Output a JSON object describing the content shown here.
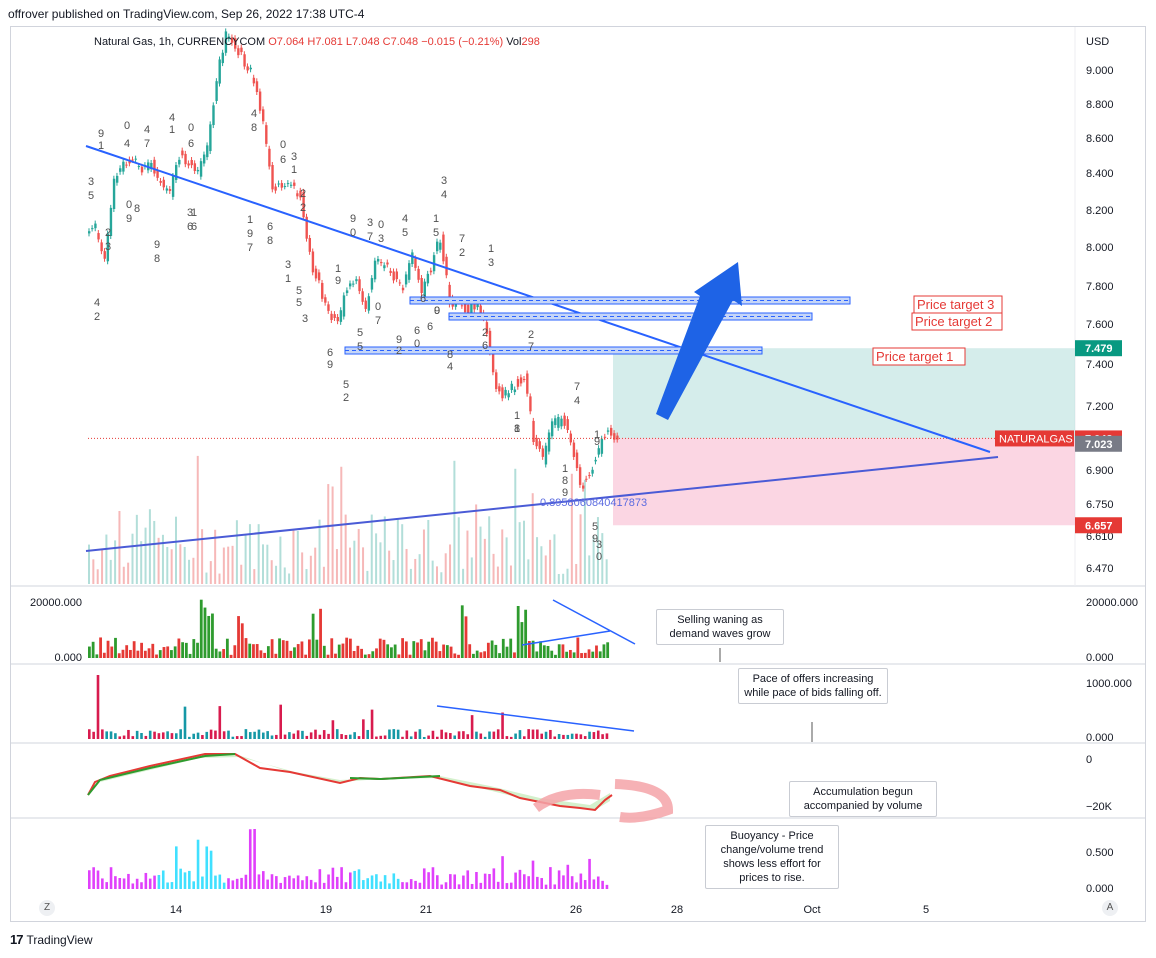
{
  "header": {
    "published_by": "offrover published on TradingView.com, Sep 26, 2022 17:38 UTC-4"
  },
  "symbol_line": {
    "name": "Natural Gas, 1h, CURRENCYCOM",
    "open": "O7.064",
    "high": "H7.081",
    "low": "L7.048",
    "close": "C7.048",
    "change": "−0.015 (−0.21%)",
    "vol_label": "Vol",
    "vol_value": "298"
  },
  "footer": {
    "brand": "TradingView",
    "logo": "17"
  },
  "controls": {
    "left": "Z",
    "right": "A"
  },
  "colors": {
    "up": "#26a69a",
    "down": "#ef5350",
    "line": "#2962ff",
    "zone_green": "#b2dfdb",
    "zone_red": "#f8bbd0",
    "vol_green": "#2e9b2e",
    "vol_red": "#e53935",
    "teal": "#1598a6",
    "crimson": "#d81b4e",
    "magenta": "#e040fb",
    "cyan": "#40e0ff"
  },
  "chart_data": {
    "type": "line",
    "main": {
      "currency": "USD",
      "y_ticks": [
        "9.000",
        "8.800",
        "8.600",
        "8.400",
        "8.200",
        "8.000",
        "7.800",
        "7.600",
        "7.400",
        "7.200",
        "6.900",
        "6.750",
        "6.610",
        "6.470"
      ],
      "x_ticks": [
        "14",
        "19",
        "21",
        "26",
        "28",
        "Oct",
        "5"
      ],
      "close_series": [
        8.1,
        7.95,
        8.35,
        8.45,
        8.48,
        8.42,
        8.46,
        8.35,
        8.3,
        8.5,
        8.45,
        8.4,
        8.55,
        8.95,
        9.2,
        9.15,
        9.05,
        8.95,
        8.7,
        8.3,
        8.35,
        8.32,
        8.28,
        7.95,
        7.8,
        7.65,
        7.6,
        7.8,
        7.85,
        7.68,
        7.95,
        7.9,
        7.85,
        7.8,
        7.95,
        7.75,
        7.9,
        8.05,
        7.72,
        7.7,
        7.68,
        7.72,
        7.55,
        7.3,
        7.25,
        7.3,
        7.35,
        7.05,
        6.95,
        7.1,
        7.15,
        7.05,
        6.82,
        6.88,
        7.0,
        7.09,
        7.048
      ],
      "markers": [
        {
          "price": 7.479,
          "label": "7.479",
          "color": "#089981"
        },
        {
          "price": 7.048,
          "label": "7.048",
          "tag": "NATURALGAS",
          "color": "#e53935"
        },
        {
          "price": 7.023,
          "label": "7.023",
          "color": "#787b86"
        },
        {
          "price": 6.657,
          "label": "6.657",
          "color": "#e53935"
        }
      ],
      "zones": [
        7.65,
        7.74,
        7.47
      ],
      "targets": [
        "Price target 3",
        "Price target 2",
        "Price target 1"
      ],
      "annotation": "0.8958060840417873"
    },
    "volume": {
      "y_ticks": [
        "20000.000",
        "0.000"
      ]
    },
    "panel2": {
      "y_ticks": [
        "1000.000",
        "0.000"
      ]
    },
    "panel3": {
      "y_ticks": [
        "0",
        "−20K"
      ]
    },
    "panel4": {
      "y_ticks": [
        "0.500",
        "0.000"
      ]
    }
  },
  "notes": [
    "Selling waning as demand waves grow",
    "Pace of offers increasing while pace of bids falling off.",
    "Accumulation begun accompanied by volume",
    "Buoyancy - Price change/volume trend shows less effort for prices to rise."
  ]
}
